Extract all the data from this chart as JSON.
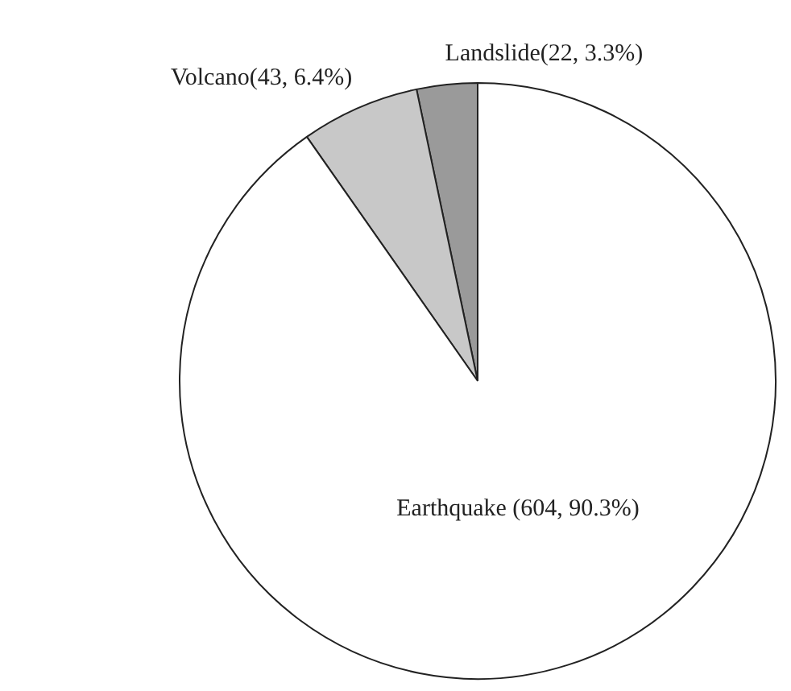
{
  "chart_data": {
    "type": "pie",
    "categories": [
      "Landslide",
      "Volcano",
      "Earthquake"
    ],
    "values": [
      22,
      43,
      604
    ],
    "colors": [
      "#9a9a9a",
      "#c8c8c8",
      "#ffffff"
    ],
    "value_labels": [
      "(22, 3.3%)",
      "(43, 6.4%)",
      " (604, 90.3%)"
    ]
  }
}
